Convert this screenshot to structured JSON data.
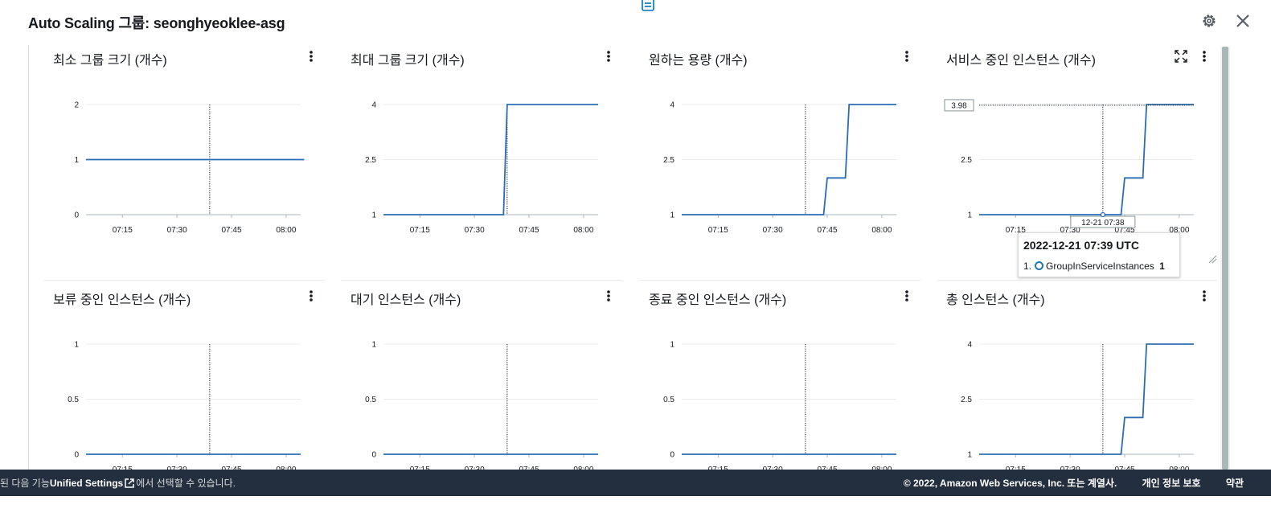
{
  "header": {
    "title": "Auto Scaling 그룹: seonghyeoklee-asg",
    "settings_icon": "gear-icon",
    "close_icon": "close-icon",
    "top_icon": "document-icon"
  },
  "colors": {
    "line": "#2a6db5",
    "grid": "#e9ebed",
    "footer_bg": "#232f3e",
    "accent": "#0073bb"
  },
  "panels": [
    {
      "title": "최소 그룹 크기 (개수)",
      "yticks": [
        "2",
        "1",
        "0"
      ],
      "xticks": [
        "07:15",
        "07:30",
        "07:45",
        "08:00"
      ]
    },
    {
      "title": "최대 그룹 크기 (개수)",
      "yticks": [
        "4",
        "2.5",
        "1"
      ],
      "xticks": [
        "07:15",
        "07:30",
        "07:45",
        "08:00"
      ]
    },
    {
      "title": "원하는 용량 (개수)",
      "yticks": [
        "4",
        "2.5",
        "1"
      ],
      "xticks": [
        "07:15",
        "07:30",
        "07:45",
        "08:00"
      ]
    },
    {
      "title": "서비스 중인 인스턴스 (개수)",
      "yticks": [
        "4",
        "2.5",
        "1"
      ],
      "xticks": [
        "07:15",
        "07:30",
        "07:45",
        "08:00"
      ],
      "hover_value": "3.98",
      "hover_time": "12-21 07:38"
    },
    {
      "title": "보류 중인 인스턴스 (개수)",
      "yticks": [
        "1",
        "0.5",
        "0"
      ],
      "xticks": [
        "07:15",
        "07:30",
        "07:45",
        "08:00"
      ]
    },
    {
      "title": "대기 인스턴스 (개수)",
      "yticks": [
        "1",
        "0.5",
        "0"
      ],
      "xticks": [
        "07:15",
        "07:30",
        "07:45",
        "08:00"
      ]
    },
    {
      "title": "종료 중인 인스턴스 (개수)",
      "yticks": [
        "1",
        "0.5",
        "0"
      ],
      "xticks": [
        "07:15",
        "07:30",
        "07:45",
        "08:00"
      ]
    },
    {
      "title": "총 인스턴스 (개수)",
      "yticks": [
        "4",
        "2.5",
        "1"
      ],
      "xticks": [
        "07:15",
        "07:30",
        "07:45",
        "08:00"
      ]
    }
  ],
  "tooltip": {
    "title": "2022-12-21 07:39 UTC",
    "index": "1.",
    "metric": "GroupInServiceInstances",
    "value": "1"
  },
  "footer": {
    "left_prefix": "된 다음 기능",
    "left_link": "Unified Settings",
    "left_suffix": "에서 선택할 수 있습니다.",
    "copyright": "© 2022, Amazon Web Services, Inc. 또는 계열사.",
    "privacy": "개인 정보 보호",
    "terms": "약관"
  },
  "chart_data": [
    {
      "type": "line",
      "title": "최소 그룹 크기 (개수)",
      "ylim": [
        0,
        2
      ],
      "x": [
        "07:05",
        "07:15",
        "07:30",
        "07:39",
        "07:45",
        "08:00",
        "08:05"
      ],
      "series": [
        {
          "values": [
            1,
            1,
            1,
            1,
            1,
            1,
            1
          ]
        }
      ]
    },
    {
      "type": "line",
      "title": "최대 그룹 크기 (개수)",
      "ylim": [
        1,
        4
      ],
      "x": [
        "07:05",
        "07:38",
        "07:39",
        "08:04"
      ],
      "series": [
        {
          "values": [
            1,
            1,
            4,
            4
          ]
        }
      ]
    },
    {
      "type": "line",
      "title": "원하는 용량 (개수)",
      "ylim": [
        1,
        4
      ],
      "x": [
        "07:05",
        "07:44",
        "07:45",
        "07:50",
        "07:51",
        "08:04"
      ],
      "series": [
        {
          "values": [
            1,
            1,
            2,
            2,
            4,
            4
          ]
        }
      ]
    },
    {
      "type": "line",
      "title": "서비스 중인 인스턴스 (개수)",
      "ylim": [
        1,
        4
      ],
      "x": [
        "07:05",
        "07:44",
        "07:45",
        "07:50",
        "07:51",
        "08:04"
      ],
      "series": [
        {
          "values": [
            1,
            1,
            2,
            2,
            4,
            4
          ]
        }
      ]
    },
    {
      "type": "line",
      "title": "보류 중인 인스턴스 (개수)",
      "ylim": [
        0,
        1
      ],
      "x": [
        "07:05",
        "08:04"
      ],
      "series": [
        {
          "values": [
            0,
            0
          ]
        }
      ]
    },
    {
      "type": "line",
      "title": "대기 인스턴스 (개수)",
      "ylim": [
        0,
        1
      ],
      "x": [
        "07:05",
        "08:04"
      ],
      "series": [
        {
          "values": [
            0,
            0
          ]
        }
      ]
    },
    {
      "type": "line",
      "title": "종료 중인 인스턴스 (개수)",
      "ylim": [
        0,
        1
      ],
      "x": [
        "07:05",
        "08:04"
      ],
      "series": [
        {
          "values": [
            0,
            0
          ]
        }
      ]
    },
    {
      "type": "line",
      "title": "총 인스턴스 (개수)",
      "ylim": [
        1,
        4
      ],
      "x": [
        "07:05",
        "07:44",
        "07:45",
        "07:50",
        "07:51",
        "08:04"
      ],
      "series": [
        {
          "values": [
            1,
            1,
            2,
            2,
            4,
            4
          ]
        }
      ]
    }
  ]
}
